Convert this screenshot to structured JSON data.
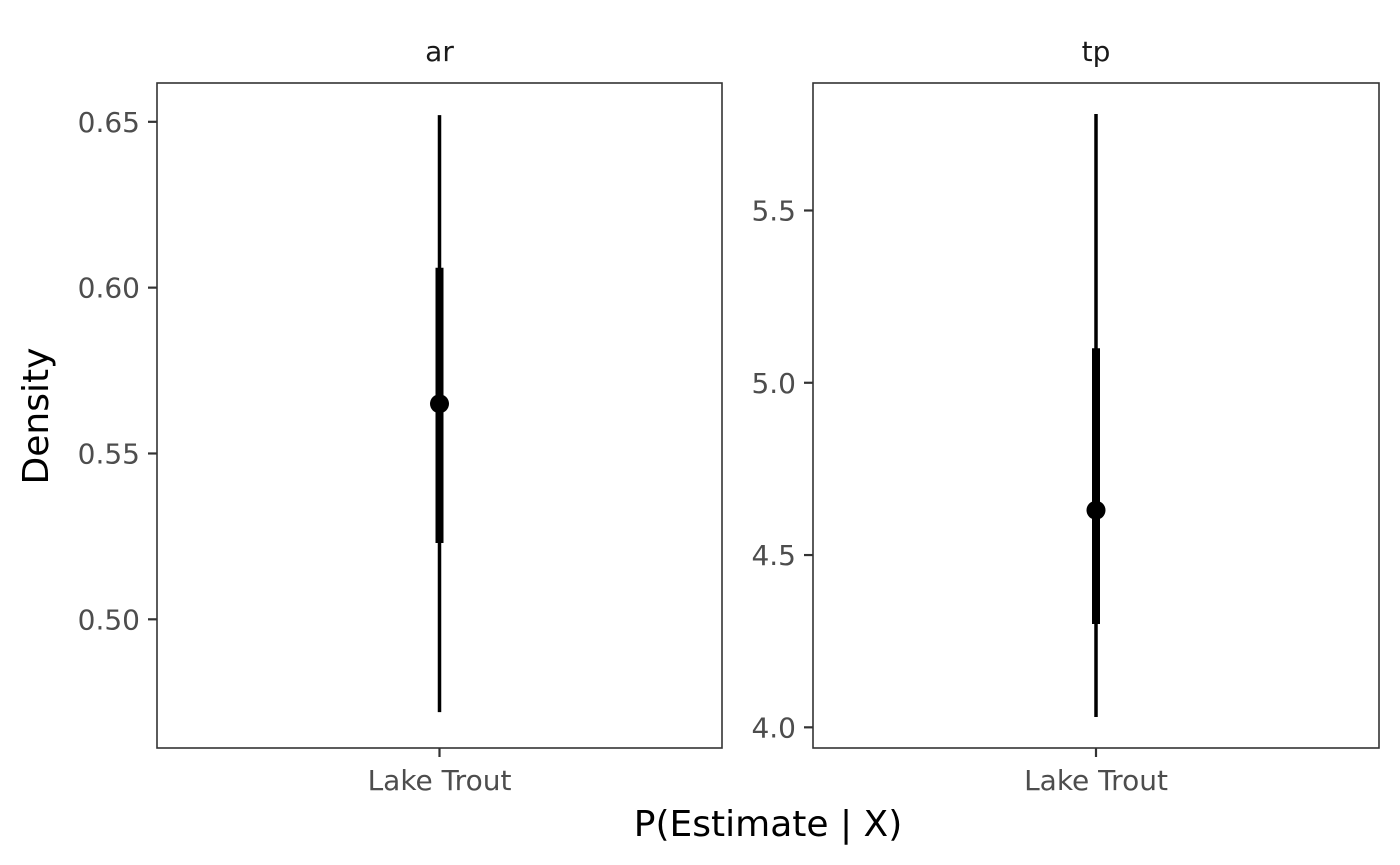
{
  "chart_data": {
    "type": "pointrange",
    "xlabel": "P(Estimate | X)",
    "ylabel": "Density",
    "grid": false,
    "legend": "none",
    "colors": {
      "mark": "#000000",
      "panel_border": "#333333",
      "tick_text": "#4d4d4d"
    },
    "panels": [
      {
        "strip": "ar",
        "categories": [
          "Lake Trout"
        ],
        "ylim": [
          0.4612,
          0.6617
        ],
        "yticks": [
          0.5,
          0.55,
          0.6,
          0.65
        ],
        "ytick_labels": [
          "0.50",
          "0.55",
          "0.60",
          "0.65"
        ],
        "points": [
          {
            "category": "Lake Trout",
            "median": 0.565,
            "inner": [
              0.523,
              0.606
            ],
            "outer": [
              0.472,
              0.652
            ]
          }
        ]
      },
      {
        "strip": "tp",
        "categories": [
          "Lake Trout"
        ],
        "ylim": [
          3.94,
          5.87
        ],
        "yticks": [
          4.0,
          4.5,
          5.0,
          5.5
        ],
        "ytick_labels": [
          "4.0",
          "4.5",
          "5.0",
          "5.5"
        ],
        "points": [
          {
            "category": "Lake Trout",
            "median": 4.63,
            "inner": [
              4.3,
              5.1
            ],
            "outer": [
              4.03,
              5.78
            ]
          }
        ]
      }
    ]
  }
}
